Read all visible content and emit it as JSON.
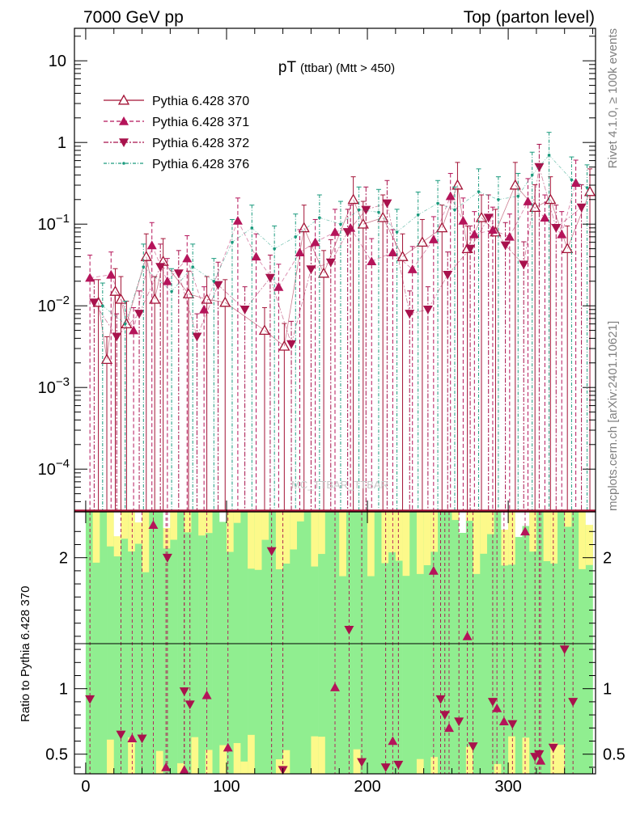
{
  "chart_data": {
    "type": "line",
    "header_left": "7000 GeV pp",
    "header_right": "Top (parton level)",
    "title_main": "pT",
    "title_sub": "(ttbar) (Mtt > 450)",
    "watermark": "MC_TTBAR_TTBAR",
    "side_text_top": "Rivet 4.1.0, ≥ 100k events",
    "side_text_bottom": "mcplots.cern.ch [arXiv:2401.10621]",
    "ratio_ylabel": "Ratio to Pythia 6.428 370",
    "x_range": [
      -8,
      362
    ],
    "x_ticks": [
      0,
      100,
      200,
      300
    ],
    "x_tick_labels": [
      "0",
      "100",
      "200",
      "300"
    ],
    "y_scale": "log",
    "y_range": [
      3e-05,
      25
    ],
    "y_tick_values": [
      0.0001,
      0.001,
      0.01,
      0.1,
      1,
      10
    ],
    "y_tick_labels": [
      {
        "base": "10",
        "exp": "−4"
      },
      {
        "base": "10",
        "exp": "−3"
      },
      {
        "base": "10",
        "exp": "−2"
      },
      {
        "base": "10",
        "exp": "−1"
      },
      {
        "base": "1",
        "exp": ""
      },
      {
        "base": "10",
        "exp": ""
      }
    ],
    "ratio_range": [
      0.35,
      2.35
    ],
    "ratio_ticks": [
      0.5,
      1,
      2
    ],
    "ratio_tick_labels": [
      "0.5",
      "1",
      "2"
    ],
    "colors": {
      "s370": "#a31336",
      "s371": "#b5145a",
      "s372": "#a8124c",
      "s376": "#1a9a7d",
      "band_green": "#90ee90",
      "band_yellow": "#fcf98a"
    },
    "series": [
      {
        "name": "Pythia 6.428 370",
        "marker": "open-triangle-up",
        "dash": "solid",
        "x": [
          9,
          15,
          21,
          25,
          29,
          43,
          49,
          55,
          73,
          86,
          99,
          127,
          141,
          155,
          169,
          190,
          197,
          211,
          225,
          239,
          253,
          264,
          271,
          281,
          291,
          305,
          319,
          330,
          342,
          358
        ],
        "y": [
          0.011,
          0.0022,
          0.015,
          0.012,
          0.006,
          0.04,
          0.012,
          0.035,
          0.014,
          0.012,
          0.011,
          0.005,
          0.0032,
          0.09,
          0.025,
          0.2,
          0.1,
          0.12,
          0.04,
          0.06,
          0.09,
          0.3,
          0.05,
          0.12,
          0.08,
          0.3,
          0.16,
          0.2,
          0.05,
          0.25
        ]
      },
      {
        "name": "Pythia 6.428 371",
        "marker": "triangle-up",
        "dash": "dashed",
        "x": [
          3,
          18,
          34,
          47,
          58,
          72,
          84,
          108,
          121,
          137,
          152,
          163,
          177,
          188,
          203,
          218,
          232,
          247,
          259,
          268,
          276,
          289,
          301,
          314,
          326,
          338,
          348
        ],
        "y": [
          0.022,
          0.024,
          0.005,
          0.055,
          0.02,
          0.038,
          0.009,
          0.11,
          0.04,
          0.017,
          0.045,
          0.06,
          0.08,
          0.09,
          0.035,
          0.045,
          0.028,
          0.065,
          0.22,
          0.11,
          0.075,
          0.085,
          0.07,
          0.19,
          0.12,
          0.075,
          0.32
        ]
      },
      {
        "name": "Pythia 6.428 372",
        "marker": "triangle-down",
        "dash": "dashdot",
        "x": [
          6,
          22,
          38,
          53,
          66,
          79,
          94,
          113,
          131,
          146,
          160,
          174,
          186,
          199,
          214,
          230,
          243,
          257,
          273,
          286,
          298,
          311,
          322,
          334,
          352
        ],
        "y": [
          0.011,
          0.0042,
          0.008,
          0.03,
          0.025,
          0.0042,
          0.018,
          0.009,
          0.022,
          0.0034,
          0.028,
          0.034,
          0.08,
          0.15,
          0.18,
          0.008,
          0.009,
          0.024,
          0.05,
          0.12,
          0.055,
          0.032,
          0.5,
          0.09,
          0.16
        ]
      },
      {
        "name": "Pythia 6.428 376",
        "marker": "dot",
        "dash": "dashdot",
        "x": [
          12,
          28,
          41,
          61,
          76,
          91,
          104,
          118,
          134,
          149,
          166,
          181,
          194,
          208,
          221,
          236,
          250,
          262,
          279,
          293,
          307,
          317,
          329,
          345,
          356
        ],
        "y": [
          0.01,
          0.006,
          0.03,
          0.015,
          0.03,
          0.02,
          0.06,
          0.09,
          0.05,
          0.07,
          0.12,
          0.1,
          0.15,
          0.14,
          0.08,
          0.13,
          0.18,
          0.15,
          0.25,
          0.2,
          0.22,
          0.4,
          0.7,
          0.35,
          0.28
        ]
      }
    ],
    "ratio_series": [
      {
        "name": "Pythia 6.428 371",
        "marker": "triangle-up",
        "x": [
          33,
          48,
          57,
          70,
          86,
          101,
          177,
          218,
          247,
          258,
          271,
          292,
          297,
          312,
          323
        ],
        "y": [
          0.62,
          2.25,
          0.4,
          0.38,
          0.95,
          0.55,
          1.01,
          0.6,
          1.9,
          0.7,
          1.4,
          0.85,
          0.75,
          2.2,
          0.45
        ]
      },
      {
        "name": "Pythia 6.428 372",
        "marker": "triangle-down",
        "x": [
          3,
          25,
          40,
          58,
          70,
          74,
          132,
          140,
          187,
          196,
          213,
          222,
          252,
          255,
          265,
          275,
          289,
          303,
          319,
          322,
          332,
          340,
          346
        ],
        "y": [
          0.92,
          0.65,
          0.62,
          2.0,
          0.98,
          0.88,
          2.05,
          0.38,
          1.45,
          0.44,
          0.4,
          0.42,
          0.92,
          0.8,
          0.75,
          0.56,
          0.9,
          0.73,
          0.48,
          0.5,
          0.55,
          1.3,
          0.9
        ]
      }
    ]
  }
}
